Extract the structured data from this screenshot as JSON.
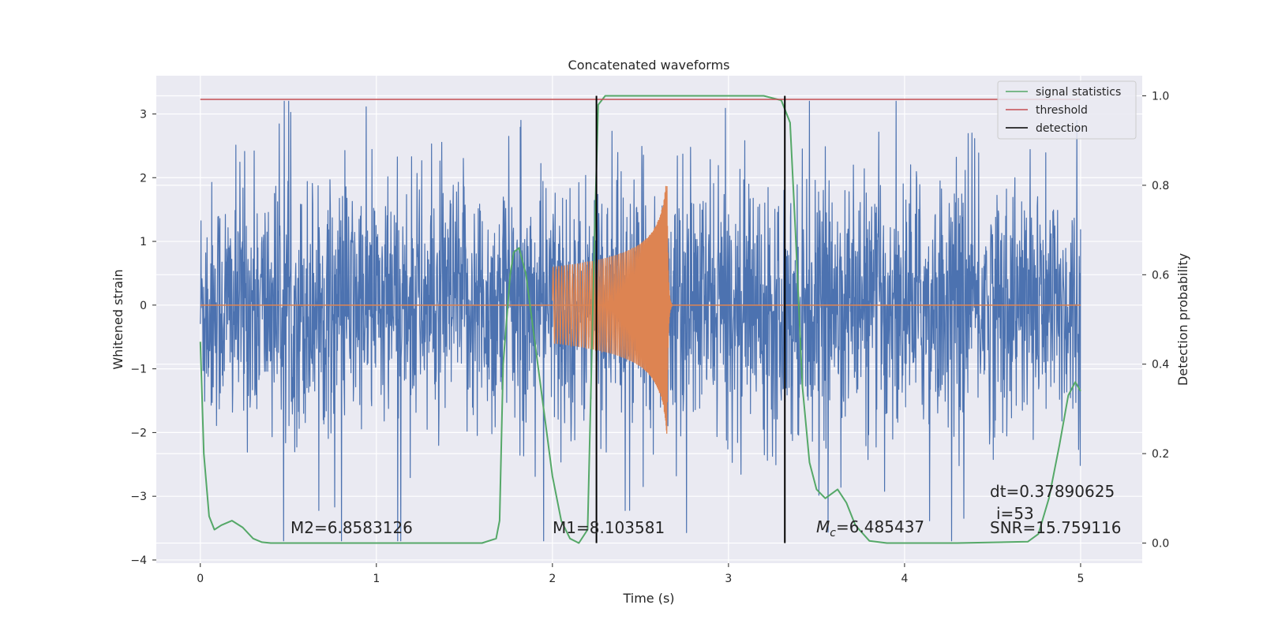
{
  "chart_data": {
    "type": "line",
    "title": "Concatenated waveforms",
    "xlabel": "Time (s)",
    "ylabel": "Whitened strain",
    "y2label": "Detection probability",
    "xlim": [
      -0.25,
      5.35
    ],
    "ylim": [
      -4.05,
      3.6
    ],
    "y2lim": [
      -0.045,
      1.045
    ],
    "xticks": [
      "0",
      "1",
      "2",
      "3",
      "4",
      "5"
    ],
    "yticks": [
      "3",
      "2",
      "1",
      "0",
      "−1",
      "−2",
      "−3",
      "−4"
    ],
    "y2ticks": [
      "1.0",
      "0.8",
      "0.6",
      "0.4",
      "0.2",
      "0.0"
    ],
    "grid": true,
    "legend_position": "top-right",
    "colors": {
      "background": "#eaeaf2",
      "noise": "#4c72b0",
      "chirp": "#dd8452",
      "signal_statistics": "#55a868",
      "threshold": "#c44e52",
      "detection": "#000000"
    },
    "series": [
      {
        "name": "signal statistics",
        "axis": "right",
        "x": [
          0,
          0.02,
          0.05,
          0.08,
          0.12,
          0.18,
          0.24,
          0.3,
          0.35,
          0.4,
          1.0,
          1.6,
          1.68,
          1.7,
          1.72,
          1.76,
          1.78,
          1.81,
          1.85,
          1.9,
          1.95,
          2.0,
          2.05,
          2.1,
          2.15,
          2.2,
          2.24,
          2.26,
          2.3,
          2.35,
          3.2,
          3.3,
          3.35,
          3.38,
          3.42,
          3.46,
          3.5,
          3.55,
          3.62,
          3.67,
          3.72,
          3.8,
          3.9,
          4.3,
          4.7,
          4.76,
          4.82,
          4.88,
          4.93,
          4.97,
          5.0
        ],
        "values": [
          0.45,
          0.2,
          0.06,
          0.03,
          0.04,
          0.05,
          0.035,
          0.01,
          0.002,
          0.0,
          0.0,
          0.0,
          0.01,
          0.05,
          0.4,
          0.6,
          0.65,
          0.66,
          0.6,
          0.45,
          0.3,
          0.15,
          0.05,
          0.01,
          0.0,
          0.03,
          0.7,
          0.98,
          1.0,
          1.0,
          1.0,
          0.99,
          0.94,
          0.7,
          0.35,
          0.18,
          0.12,
          0.1,
          0.12,
          0.09,
          0.04,
          0.005,
          0.0,
          0.0,
          0.003,
          0.02,
          0.1,
          0.22,
          0.33,
          0.36,
          0.34
        ]
      },
      {
        "name": "threshold",
        "axis": "right",
        "x": [
          0,
          5
        ],
        "values": [
          0.992,
          0.992
        ]
      },
      {
        "name": "detection",
        "axis": "right",
        "x": [
          2.25,
          3.32
        ],
        "values": [
          0,
          1
        ]
      }
    ],
    "noise": {
      "x_range": [
        0,
        5
      ],
      "y_range": [
        -3.7,
        3.2
      ]
    },
    "chirp": {
      "x_range": [
        2.0,
        2.65
      ],
      "y_range": [
        -2.2,
        2.2
      ]
    },
    "annotations": [
      "M2=6.8583126",
      "M1=8.103581",
      "=6.485437",
      "dt=0.37890625",
      "i=53",
      "SNR=15.759116"
    ],
    "mc_symbol": "M",
    "mc_subscript": "c"
  }
}
